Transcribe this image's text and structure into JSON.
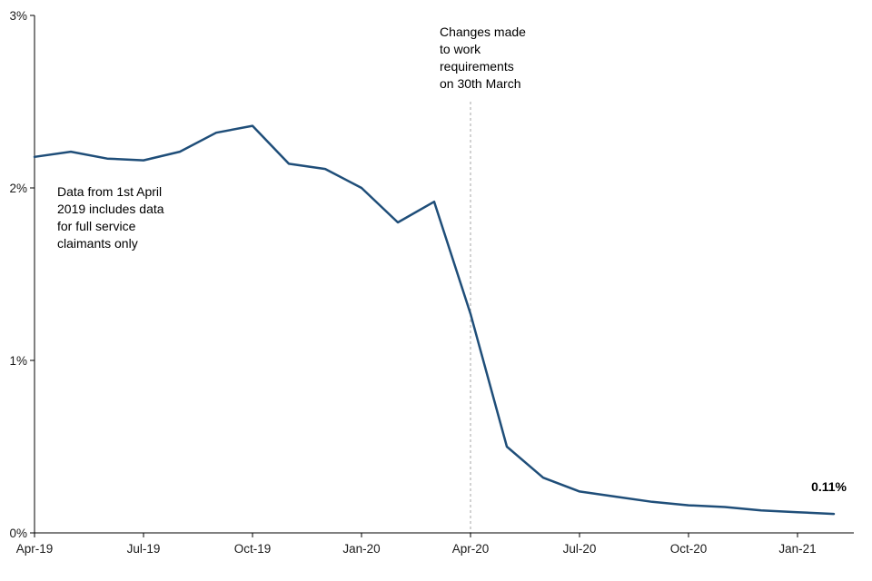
{
  "chart_data": {
    "type": "line",
    "title": "",
    "xlabel": "",
    "ylabel": "",
    "ylim": [
      0,
      3
    ],
    "grid": false,
    "legend": "none",
    "x": [
      "Apr-19",
      "May-19",
      "Jun-19",
      "Jul-19",
      "Aug-19",
      "Sep-19",
      "Oct-19",
      "Nov-19",
      "Dec-19",
      "Jan-20",
      "Feb-20",
      "Mar-20",
      "Apr-20",
      "May-20",
      "Jun-20",
      "Jul-20",
      "Aug-20",
      "Sep-20",
      "Oct-20",
      "Nov-20",
      "Dec-20",
      "Jan-21",
      "Feb-21"
    ],
    "values": [
      2.18,
      2.21,
      2.17,
      2.16,
      2.21,
      2.32,
      2.36,
      2.14,
      2.11,
      2.0,
      1.8,
      1.92,
      1.27,
      0.5,
      0.32,
      0.24,
      0.21,
      0.18,
      0.16,
      0.15,
      0.13,
      0.12,
      0.11
    ],
    "x_tick_labels": [
      "Apr-19",
      "Jul-19",
      "Oct-19",
      "Jan-20",
      "Apr-20",
      "Jul-20",
      "Oct-20",
      "Jan-21"
    ],
    "x_tick_month_indices": [
      0,
      3,
      6,
      9,
      12,
      15,
      18,
      21
    ],
    "y_tick_labels": [
      "0%",
      "1%",
      "2%",
      "3%"
    ],
    "y_tick_values": [
      0,
      1,
      2,
      3
    ],
    "line_color": "#1f4e79",
    "axis_color": "#000000",
    "reference_line": {
      "x": "Apr-20",
      "color": "#a6a6a6",
      "style": "dashed"
    },
    "annotations": {
      "changes": "Changes made\nto work\nrequirements\non 30th March",
      "data_note": "Data from 1st April\n2019 includes data\nfor full service\nclaimants only",
      "end_label": "0.11%"
    }
  }
}
